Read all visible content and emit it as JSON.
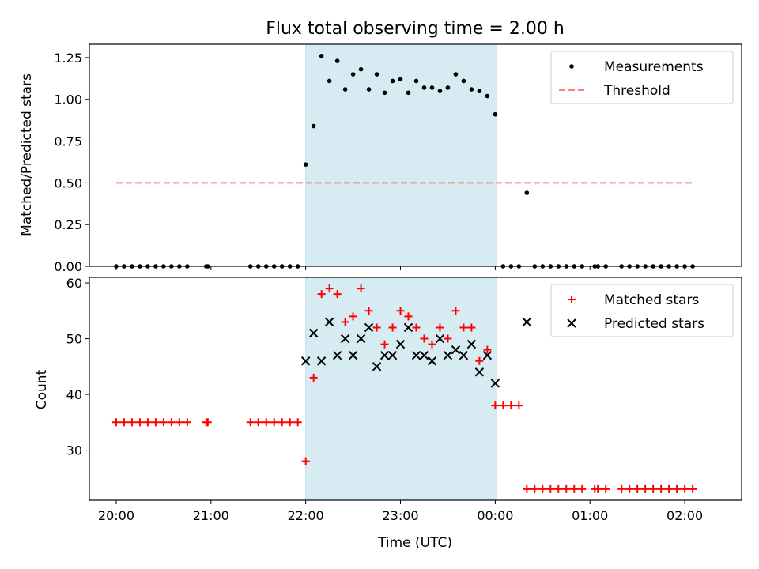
{
  "chart_data": [
    {
      "type": "scatter",
      "title": "Flux total observing time = 2.00 h",
      "xlabel": "",
      "ylabel": "Matched/Predicted stars",
      "xlim": [
        "19:43",
        "02:36"
      ],
      "ylim": [
        0,
        1.33
      ],
      "x_ticks": [
        "20:00",
        "21:00",
        "22:00",
        "23:00",
        "00:00",
        "01:00",
        "02:00"
      ],
      "y_ticks": [
        "0.00",
        "0.25",
        "0.50",
        "0.75",
        "1.00",
        "1.25"
      ],
      "y_tick_values": [
        0,
        0.25,
        0.5,
        0.75,
        1.0,
        1.25
      ],
      "shaded_interval": [
        "22:00",
        "00:01"
      ],
      "legend_position": "top-right",
      "series": [
        {
          "name": "Measurements",
          "marker": "dot",
          "color": "#000000",
          "x": [
            "20:00",
            "20:05",
            "20:10",
            "20:15",
            "20:20",
            "20:25",
            "20:30",
            "20:35",
            "20:40",
            "20:45",
            "20:57",
            "20:58",
            "21:25",
            "21:30",
            "21:35",
            "21:40",
            "21:45",
            "21:50",
            "21:55",
            "22:00",
            "22:05",
            "22:10",
            "22:15",
            "22:20",
            "22:25",
            "22:30",
            "22:35",
            "22:40",
            "22:45",
            "22:50",
            "22:55",
            "23:00",
            "23:05",
            "23:10",
            "23:15",
            "23:20",
            "23:25",
            "23:30",
            "23:35",
            "23:40",
            "23:45",
            "23:50",
            "23:55",
            "00:00",
            "00:05",
            "00:10",
            "00:15",
            "00:20",
            "00:25",
            "00:30",
            "00:35",
            "00:40",
            "00:45",
            "00:50",
            "00:55",
            "01:03",
            "01:05",
            "01:10",
            "01:20",
            "01:25",
            "01:30",
            "01:35",
            "01:40",
            "01:45",
            "01:50",
            "01:55",
            "02:00",
            "02:05"
          ],
          "y": [
            0,
            0,
            0,
            0,
            0,
            0,
            0,
            0,
            0,
            0,
            0,
            0,
            0,
            0,
            0,
            0,
            0,
            0,
            0,
            0.61,
            0.84,
            1.26,
            1.11,
            1.23,
            1.06,
            1.15,
            1.18,
            1.06,
            1.15,
            1.04,
            1.11,
            1.12,
            1.04,
            1.11,
            1.07,
            1.07,
            1.05,
            1.07,
            1.15,
            1.11,
            1.06,
            1.05,
            1.02,
            0.91,
            0,
            0,
            0,
            0.44,
            0,
            0,
            0,
            0,
            0,
            0,
            0,
            0,
            0,
            0,
            0,
            0,
            0,
            0,
            0,
            0,
            0,
            0,
            0,
            0
          ]
        },
        {
          "name": "Threshold",
          "type": "line",
          "style": "dashed",
          "color": "#ff7f7f",
          "x": [
            "20:00",
            "02:05"
          ],
          "y": [
            0.5,
            0.5
          ]
        }
      ]
    },
    {
      "type": "scatter",
      "title": "",
      "xlabel": "Time (UTC)",
      "ylabel": "Count",
      "xlim": [
        "19:43",
        "02:36"
      ],
      "ylim": [
        21,
        61
      ],
      "x_ticks": [
        "20:00",
        "21:00",
        "22:00",
        "23:00",
        "00:00",
        "01:00",
        "02:00"
      ],
      "y_ticks": [
        "30",
        "40",
        "50",
        "60"
      ],
      "y_tick_values": [
        30,
        40,
        50,
        60
      ],
      "shaded_interval": [
        "22:00",
        "00:01"
      ],
      "legend_position": "top-right",
      "series": [
        {
          "name": "Matched stars",
          "marker": "plus",
          "color": "#ff0000",
          "x": [
            "20:00",
            "20:05",
            "20:10",
            "20:15",
            "20:20",
            "20:25",
            "20:30",
            "20:35",
            "20:40",
            "20:45",
            "20:57",
            "20:58",
            "21:25",
            "21:30",
            "21:35",
            "21:40",
            "21:45",
            "21:50",
            "21:55",
            "22:00",
            "22:05",
            "22:10",
            "22:15",
            "22:20",
            "22:25",
            "22:30",
            "22:35",
            "22:40",
            "22:45",
            "22:50",
            "22:55",
            "23:00",
            "23:05",
            "23:10",
            "23:15",
            "23:20",
            "23:25",
            "23:30",
            "23:35",
            "23:40",
            "23:45",
            "23:50",
            "23:55",
            "00:00",
            "00:05",
            "00:10",
            "00:15",
            "00:20",
            "00:25",
            "00:30",
            "00:35",
            "00:40",
            "00:45",
            "00:50",
            "00:55",
            "01:03",
            "01:05",
            "01:10",
            "01:20",
            "01:25",
            "01:30",
            "01:35",
            "01:40",
            "01:45",
            "01:50",
            "01:55",
            "02:00",
            "02:05"
          ],
          "y": [
            35,
            35,
            35,
            35,
            35,
            35,
            35,
            35,
            35,
            35,
            35,
            35,
            35,
            35,
            35,
            35,
            35,
            35,
            35,
            28,
            43,
            58,
            59,
            58,
            53,
            54,
            59,
            55,
            52,
            49,
            52,
            55,
            54,
            52,
            50,
            49,
            52,
            50,
            55,
            52,
            52,
            46,
            48,
            38,
            38,
            38,
            38,
            23,
            23,
            23,
            23,
            23,
            23,
            23,
            23,
            23,
            23,
            23,
            23,
            23,
            23,
            23,
            23,
            23,
            23,
            23,
            23,
            23
          ]
        },
        {
          "name": "Predicted stars",
          "marker": "x",
          "color": "#000000",
          "x": [
            "22:00",
            "22:05",
            "22:10",
            "22:15",
            "22:20",
            "22:25",
            "22:30",
            "22:35",
            "22:40",
            "22:45",
            "22:50",
            "22:55",
            "23:00",
            "23:05",
            "23:10",
            "23:15",
            "23:20",
            "23:25",
            "23:30",
            "23:35",
            "23:40",
            "23:45",
            "23:50",
            "23:55",
            "00:00",
            "00:20"
          ],
          "y": [
            46,
            51,
            46,
            53,
            47,
            50,
            47,
            50,
            52,
            45,
            47,
            47,
            49,
            52,
            47,
            47,
            46,
            50,
            47,
            48,
            47,
            49,
            44,
            47,
            42,
            53
          ]
        }
      ]
    }
  ]
}
